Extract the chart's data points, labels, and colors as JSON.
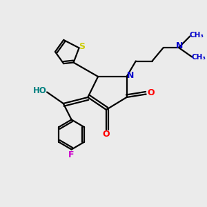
{
  "bg_color": "#ebebeb",
  "bond_color": "#000000",
  "N_color": "#0000cc",
  "O_color": "#ff0000",
  "S_color": "#cccc00",
  "F_color": "#cc00cc",
  "HO_color": "#008080",
  "figsize": [
    3.0,
    3.0
  ],
  "dpi": 100,
  "xlim": [
    0,
    10
  ],
  "ylim": [
    0,
    10
  ]
}
